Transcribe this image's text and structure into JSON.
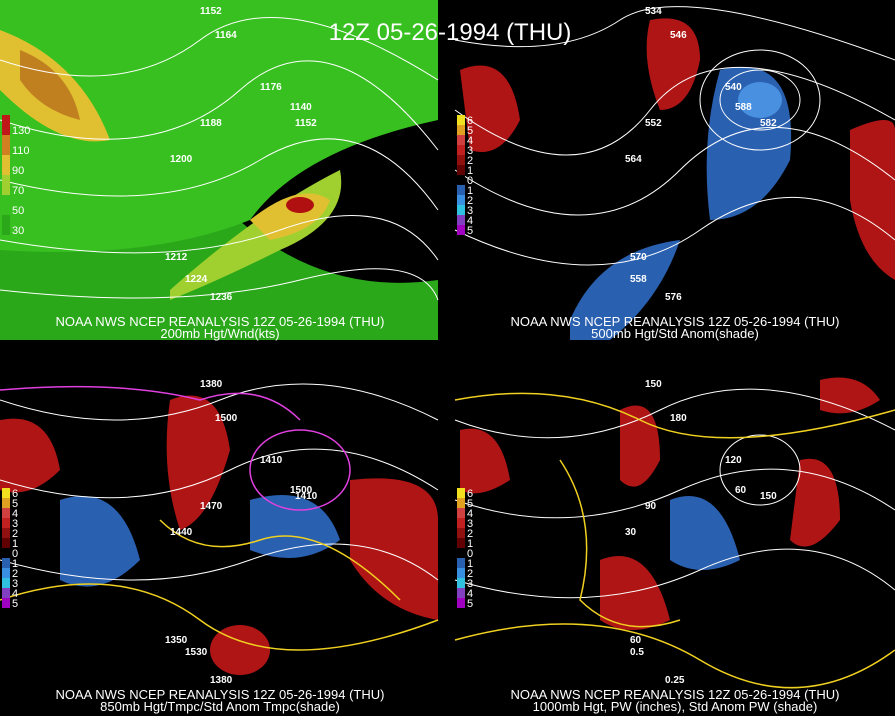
{
  "title": "12Z 05-26-1994 (THU)",
  "panels": [
    {
      "caption": "NOAA NWS NCEP REANALYSIS 12Z 05-26-1994 (THU)",
      "subcaption": "200mb Hgt/Wnd(kts)",
      "legend": [
        "130",
        "110",
        "90",
        "70",
        "50",
        "30"
      ],
      "labels": [
        "1152",
        "1164",
        "1176",
        "1188",
        "1200",
        "1212",
        "1224",
        "1236",
        "1152",
        "1140"
      ]
    },
    {
      "caption": "NOAA NWS NCEP REANALYSIS 12Z 05-26-1994 (THU)",
      "subcaption": "500mb Hgt/Std Anom(shade)",
      "legend": [
        "6",
        "5",
        "4",
        "3",
        "2",
        "1",
        "0",
        "1",
        "2",
        "3",
        "4",
        "5"
      ],
      "labels": [
        "534",
        "546",
        "540",
        "552",
        "564",
        "570",
        "558",
        "576",
        "582",
        "588"
      ]
    },
    {
      "caption": "NOAA NWS NCEP REANALYSIS 12Z 05-26-1994 (THU)",
      "subcaption": "850mb Hgt/Tmpc/Std Anom Tmpc(shade)",
      "legend": [
        "6",
        "5",
        "4",
        "3",
        "2",
        "1",
        "0",
        "1",
        "2",
        "3",
        "4",
        "5"
      ],
      "labels": [
        "1380",
        "1500",
        "1410",
        "1470",
        "1440",
        "1350",
        "1530",
        "1380",
        "1410",
        "1500"
      ]
    },
    {
      "caption": "NOAA NWS NCEP REANALYSIS 12Z 05-26-1994 (THU)",
      "subcaption": "1000mb Hgt, PW (inches), Std Anom PW (shade)",
      "legend": [
        "6",
        "5",
        "4",
        "3",
        "2",
        "1",
        "0",
        "1",
        "2",
        "3",
        "4",
        "5"
      ],
      "labels": [
        "150",
        "180",
        "120",
        "90",
        "30",
        "60",
        "0.5",
        "0.25",
        "150",
        "60"
      ]
    }
  ]
}
